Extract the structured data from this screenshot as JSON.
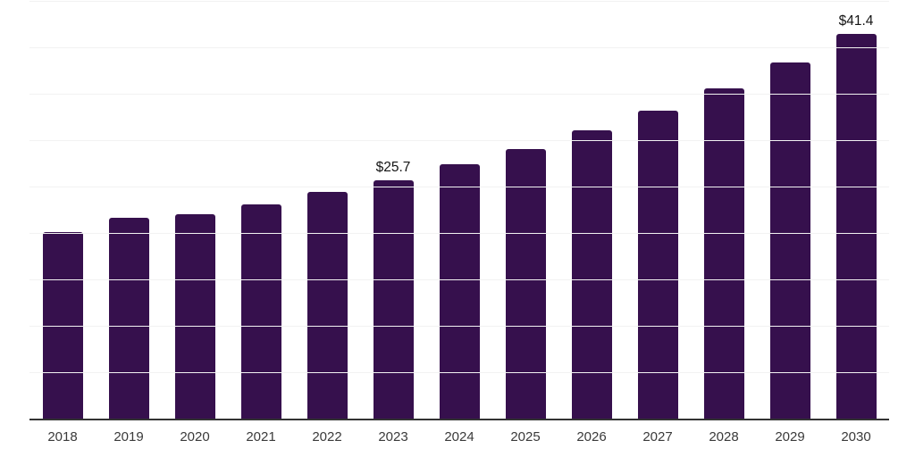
{
  "chart_data": {
    "type": "bar",
    "title": "",
    "categories": [
      "2018",
      "2019",
      "2020",
      "2021",
      "2022",
      "2023",
      "2024",
      "2025",
      "2026",
      "2027",
      "2028",
      "2029",
      "2030"
    ],
    "values": [
      20.1,
      21.6,
      22.0,
      23.1,
      24.4,
      25.7,
      27.4,
      29.0,
      31.1,
      33.2,
      35.6,
      38.4,
      41.4
    ],
    "data_labels": [
      {
        "index": 5,
        "text": "$25.7"
      },
      {
        "index": 12,
        "text": "$41.4"
      }
    ],
    "xlabel": "",
    "ylabel": "",
    "ylim": [
      0,
      45
    ],
    "grid_step": 5,
    "grid": "horizontal",
    "legend_position": "none",
    "colors": {
      "bar": "#36104D",
      "axis": "#333333",
      "grid": "#F2F2F2",
      "tick_label": "#3A3A3A",
      "data_label": "#141414"
    }
  }
}
